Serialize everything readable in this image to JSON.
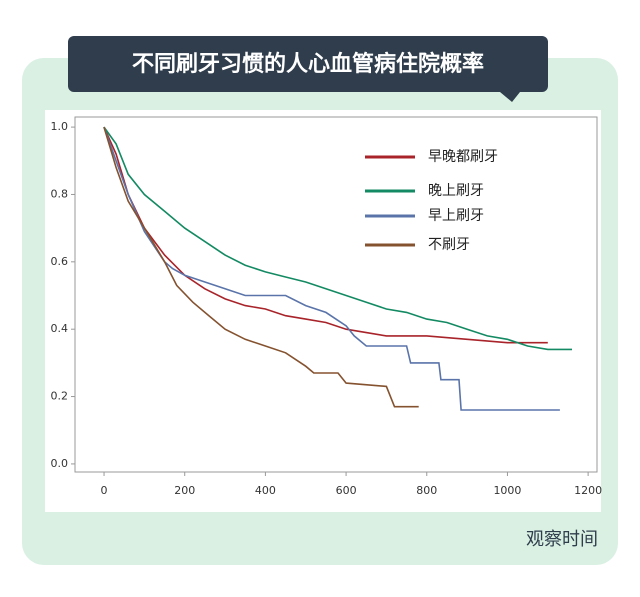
{
  "chart_data": {
    "type": "line",
    "title": "不同刷牙习惯的人心血管病住院概率",
    "x_label": "观察时间",
    "xlim": [
      -72,
      1222
    ],
    "xticks": [
      0,
      200,
      400,
      600,
      800,
      1000,
      1200
    ],
    "ylim": [
      -0.024,
      1.03
    ],
    "yticks": [
      {
        "value": 0,
        "label": "0.0"
      },
      0.2,
      0.4,
      0.6,
      0.8,
      {
        "value": 1,
        "label": "1.0"
      }
    ],
    "grid": false,
    "legend": "upper right",
    "series": [
      {
        "name": "早晚都刷牙",
        "color": "#a8242a",
        "x": [
          0,
          30,
          60,
          100,
          150,
          200,
          250,
          300,
          350,
          400,
          450,
          500,
          550,
          600,
          650,
          700,
          800,
          900,
          1000,
          1100
        ],
        "values": [
          1.0,
          0.92,
          0.8,
          0.7,
          0.62,
          0.56,
          0.52,
          0.49,
          0.47,
          0.46,
          0.44,
          0.43,
          0.42,
          0.4,
          0.39,
          0.38,
          0.38,
          0.37,
          0.36,
          0.36
        ]
      },
      {
        "name": "晚上刷牙",
        "color": "#138a63",
        "x": [
          0,
          30,
          60,
          100,
          150,
          200,
          250,
          300,
          350,
          400,
          450,
          500,
          550,
          600,
          650,
          700,
          750,
          800,
          850,
          900,
          950,
          1000,
          1050,
          1100,
          1160
        ],
        "values": [
          1.0,
          0.95,
          0.86,
          0.8,
          0.75,
          0.7,
          0.66,
          0.62,
          0.59,
          0.57,
          0.555,
          0.54,
          0.52,
          0.5,
          0.48,
          0.46,
          0.45,
          0.43,
          0.42,
          0.4,
          0.38,
          0.37,
          0.35,
          0.34,
          0.34
        ]
      },
      {
        "name": "早上刷牙",
        "color": "#5a74aa",
        "x": [
          0,
          30,
          60,
          100,
          150,
          170,
          200,
          250,
          300,
          350,
          450,
          500,
          550,
          600,
          620,
          650,
          750,
          760,
          830,
          835,
          880,
          885,
          1130
        ],
        "values": [
          1.0,
          0.9,
          0.8,
          0.69,
          0.6,
          0.58,
          0.56,
          0.54,
          0.52,
          0.5,
          0.5,
          0.47,
          0.45,
          0.41,
          0.38,
          0.35,
          0.35,
          0.3,
          0.3,
          0.25,
          0.25,
          0.16,
          0.16
        ]
      },
      {
        "name": "不刷牙",
        "color": "#85522f",
        "x": [
          0,
          30,
          60,
          100,
          150,
          180,
          220,
          260,
          300,
          350,
          400,
          450,
          500,
          520,
          580,
          600,
          700,
          720,
          780
        ],
        "values": [
          1.0,
          0.88,
          0.78,
          0.7,
          0.6,
          0.53,
          0.48,
          0.44,
          0.4,
          0.37,
          0.35,
          0.33,
          0.29,
          0.27,
          0.27,
          0.24,
          0.23,
          0.17,
          0.17
        ]
      }
    ]
  }
}
